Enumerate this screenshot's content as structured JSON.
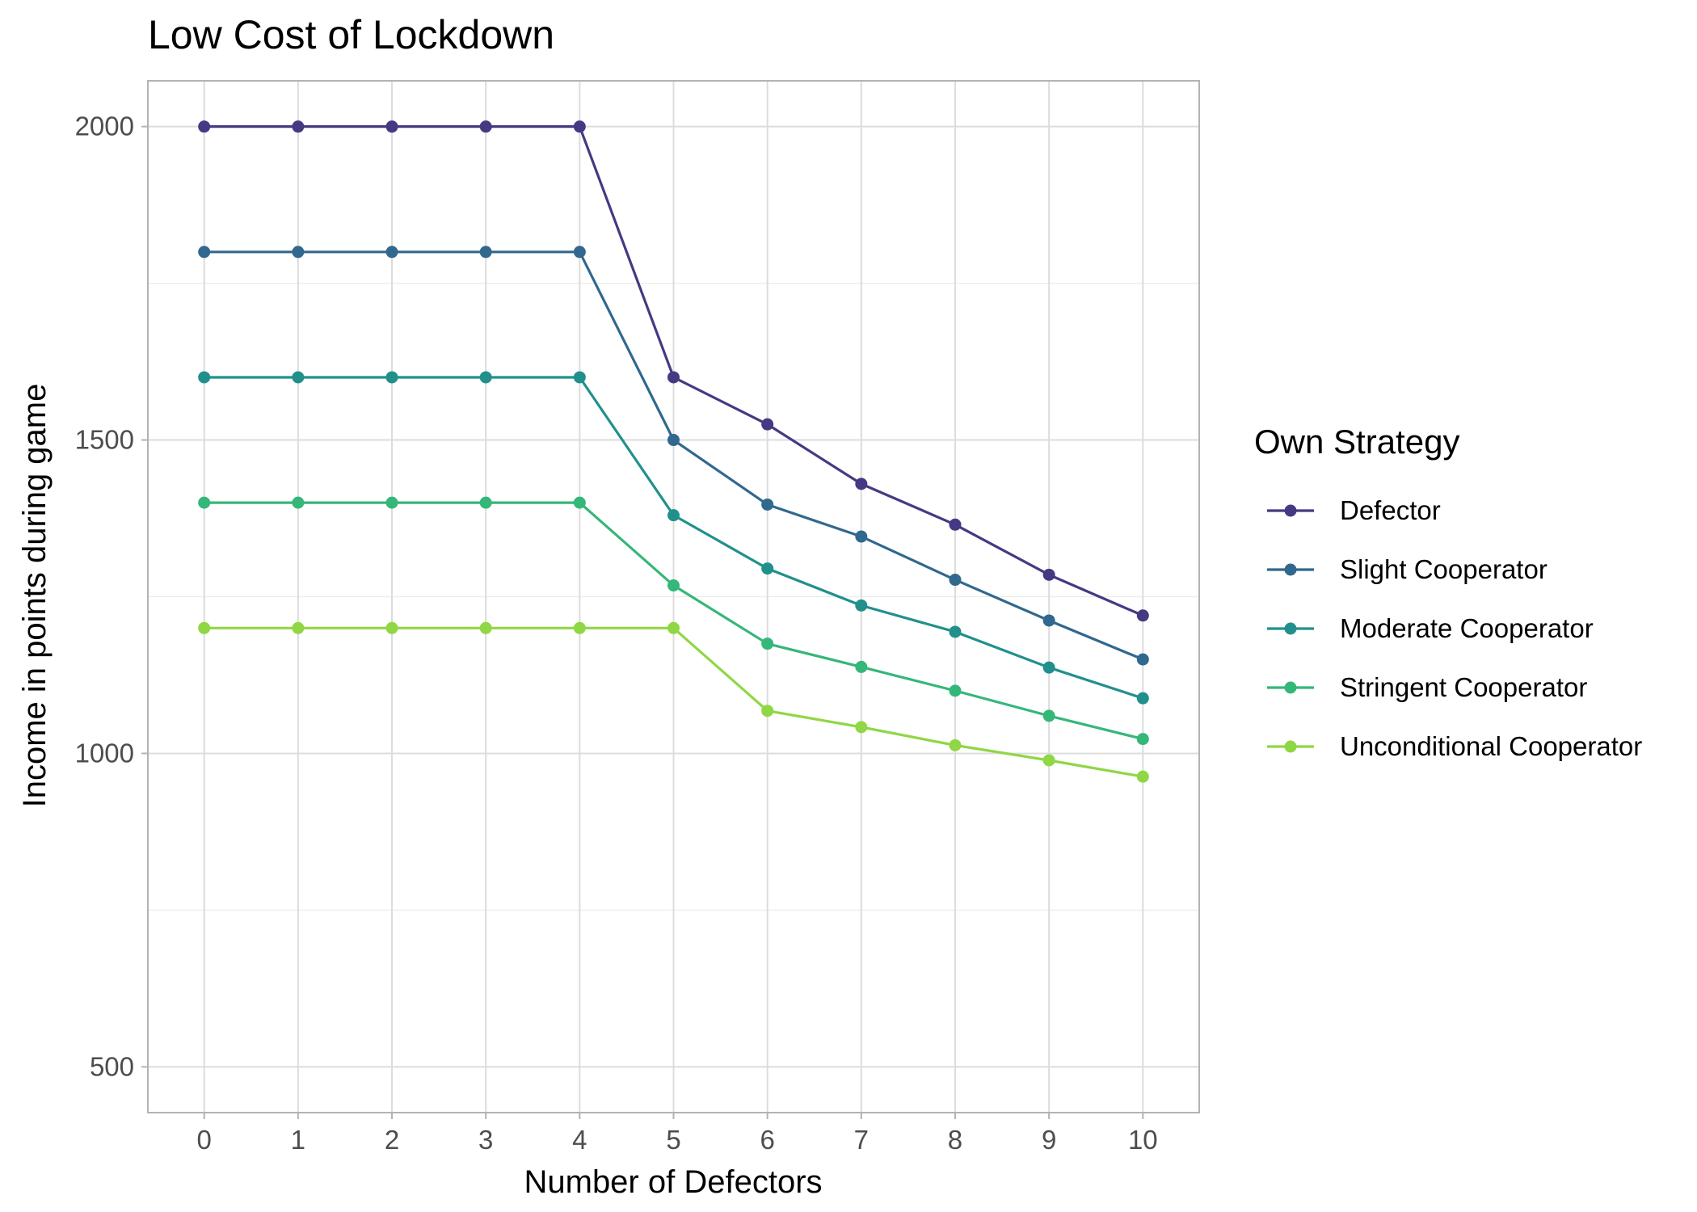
{
  "chart_data": {
    "type": "line",
    "title": "Low Cost of Lockdown",
    "xlabel": "Number of Defectors",
    "ylabel": "Income in points during game",
    "x": [
      0,
      1,
      2,
      3,
      4,
      5,
      6,
      7,
      8,
      9,
      10
    ],
    "x_ticks": [
      "0",
      "1",
      "2",
      "3",
      "4",
      "5",
      "6",
      "7",
      "8",
      "9",
      "10"
    ],
    "xlim": [
      -0.6,
      10.6
    ],
    "y_ticks": [
      500,
      1000,
      1500,
      2000
    ],
    "y_tick_labels": [
      "500",
      "1000",
      "1500",
      "2000"
    ],
    "ylim": [
      427,
      2073
    ],
    "grid": true,
    "legend": {
      "title": "Own Strategy",
      "position": "right"
    },
    "series": [
      {
        "name": "Defector",
        "color": "#443A83",
        "values": [
          2000,
          2000,
          2000,
          2000,
          2000,
          1600,
          1525,
          1430,
          1365,
          1285,
          1220
        ]
      },
      {
        "name": "Slight Cooperator",
        "color": "#31688E",
        "values": [
          1800,
          1800,
          1800,
          1800,
          1800,
          1500,
          1397,
          1346,
          1277,
          1212,
          1150
        ]
      },
      {
        "name": "Moderate Cooperator",
        "color": "#21908C",
        "values": [
          1600,
          1600,
          1600,
          1600,
          1600,
          1380,
          1295,
          1236,
          1194,
          1137,
          1088
        ]
      },
      {
        "name": "Stringent Cooperator",
        "color": "#35B779",
        "values": [
          1400,
          1400,
          1400,
          1400,
          1400,
          1268,
          1175,
          1138,
          1100,
          1060,
          1023
        ]
      },
      {
        "name": "Unconditional Cooperator",
        "color": "#8FD744",
        "values": [
          1200,
          1200,
          1200,
          1200,
          1200,
          1200,
          1068,
          1042,
          1013,
          989,
          963
        ]
      }
    ]
  }
}
